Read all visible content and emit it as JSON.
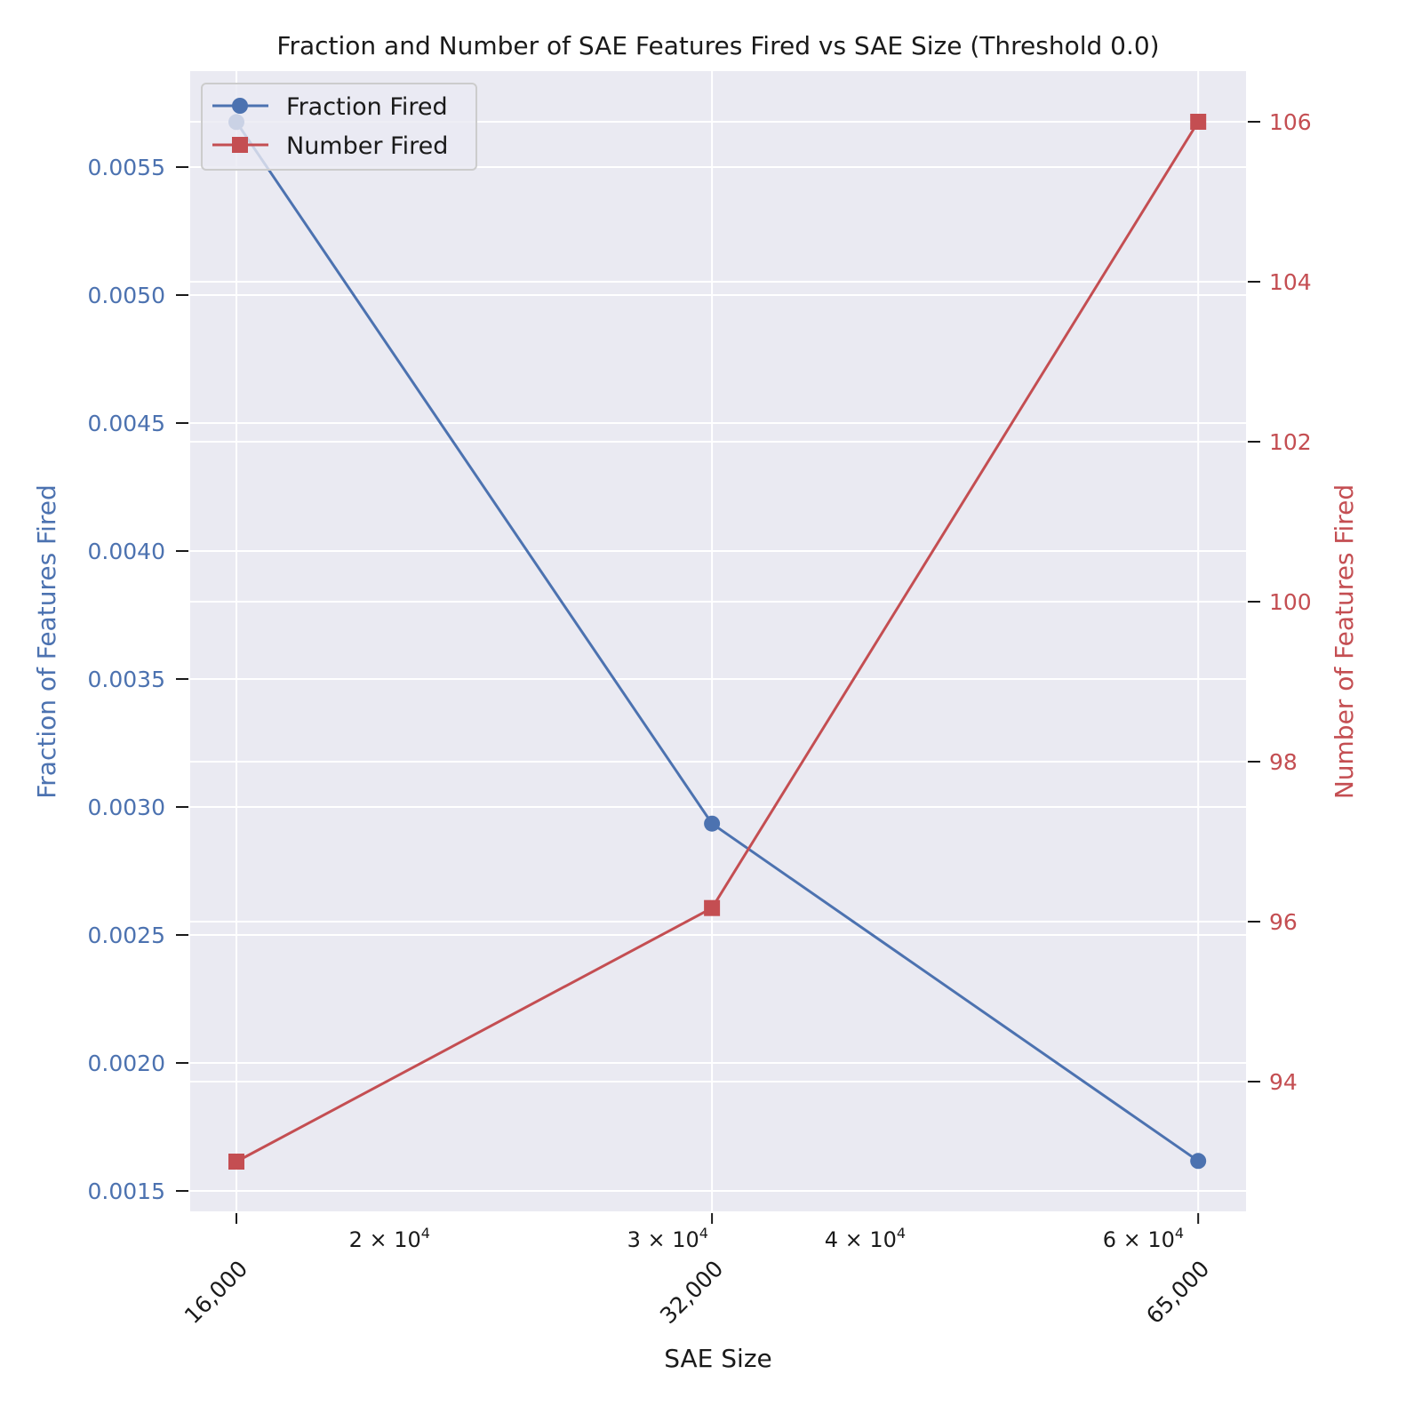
{
  "chart_data": {
    "type": "line",
    "title": "Fraction and Number of SAE Features Fired vs SAE Size (Threshold 0.0)",
    "xlabel": "SAE Size",
    "xscale": "log",
    "x": [
      16000,
      32000,
      65000
    ],
    "x_tick_labels": [
      "16,000",
      "32,000",
      "65,000"
    ],
    "x_minor_ticks": [
      {
        "value": 20000,
        "label_base": "2 × 10",
        "label_exp": "4"
      },
      {
        "value": 30000,
        "label_base": "3 × 10",
        "label_exp": "4"
      },
      {
        "value": 40000,
        "label_base": "4 × 10",
        "label_exp": "4"
      },
      {
        "value": 60000,
        "label_base": "6 × 10",
        "label_exp": "4"
      }
    ],
    "y_left": {
      "label": "Fraction of Features Fired",
      "ticks": [
        0.0015,
        0.002,
        0.0025,
        0.003,
        0.0035,
        0.004,
        0.0045,
        0.005,
        0.0055
      ],
      "tick_labels": [
        "0.0015",
        "0.0020",
        "0.0025",
        "0.0030",
        "0.0035",
        "0.0040",
        "0.0045",
        "0.0050",
        "0.0055"
      ],
      "color": "#4c72b0"
    },
    "y_right": {
      "label": "Number of Features Fired",
      "ticks": [
        94,
        96,
        98,
        100,
        102,
        104,
        106
      ],
      "tick_labels": [
        "94",
        "96",
        "98",
        "100",
        "102",
        "104",
        "106"
      ],
      "color": "#c44e52"
    },
    "series": [
      {
        "name": "Fraction Fired",
        "axis": "left",
        "marker": "circle",
        "color": "#4c72b0",
        "values": [
          0.005676,
          0.002935,
          0.001617
        ]
      },
      {
        "name": "Number Fired",
        "axis": "right",
        "marker": "square",
        "color": "#c44e52",
        "values": [
          93,
          96.17,
          106
        ]
      }
    ],
    "legend": {
      "placement": "top-left"
    },
    "grid": true
  }
}
